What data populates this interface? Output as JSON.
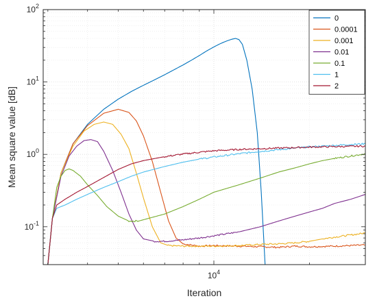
{
  "chart_data": {
    "type": "line",
    "xlabel": "Iteration",
    "ylabel": "Mean square value [dB]",
    "x_scale": "log",
    "y_scale": "log",
    "xlim": [
      2900,
      30000
    ],
    "ylim": [
      0.03,
      100
    ],
    "grid": true,
    "x_tick_labels": [
      {
        "value": 10000,
        "base": "10",
        "exp": "4"
      }
    ],
    "y_tick_labels": [
      {
        "value": 0.1,
        "base": "10",
        "exp": "-1"
      },
      {
        "value": 1,
        "base": "10",
        "exp": "0"
      },
      {
        "value": 10,
        "base": "10",
        "exp": "1"
      },
      {
        "value": 100,
        "base": "10",
        "exp": "2"
      }
    ],
    "legend_position": "top-right",
    "series": [
      {
        "name": "0",
        "color": "#0072BD",
        "points": [
          [
            3000,
            0.03
          ],
          [
            3100,
            0.13
          ],
          [
            3300,
            0.55
          ],
          [
            3600,
            1.4
          ],
          [
            4000,
            2.6
          ],
          [
            4500,
            4.2
          ],
          [
            5000,
            5.8
          ],
          [
            5500,
            7.4
          ],
          [
            6000,
            9.0
          ],
          [
            6500,
            10.7
          ],
          [
            7000,
            12.6
          ],
          [
            7500,
            14.8
          ],
          [
            8000,
            17.2
          ],
          [
            8500,
            20.0
          ],
          [
            9000,
            23.2
          ],
          [
            9500,
            26.9
          ],
          [
            10000,
            30.5
          ],
          [
            10500,
            34.0
          ],
          [
            11000,
            37.0
          ],
          [
            11400,
            39.0
          ],
          [
            11700,
            40.0
          ],
          [
            12000,
            38.5
          ],
          [
            12300,
            33.0
          ],
          [
            12700,
            20.0
          ],
          [
            13200,
            8.0
          ],
          [
            13700,
            2.0
          ],
          [
            14100,
            0.3
          ],
          [
            14500,
            0.03
          ]
        ]
      },
      {
        "name": "0.0001",
        "color": "#D95319",
        "points": [
          [
            3000,
            0.03
          ],
          [
            3100,
            0.13
          ],
          [
            3300,
            0.55
          ],
          [
            3600,
            1.4
          ],
          [
            4000,
            2.5
          ],
          [
            4500,
            3.7
          ],
          [
            5000,
            4.2
          ],
          [
            5400,
            3.8
          ],
          [
            5700,
            2.9
          ],
          [
            6000,
            1.8
          ],
          [
            6400,
            0.8
          ],
          [
            6800,
            0.3
          ],
          [
            7200,
            0.12
          ],
          [
            7600,
            0.07
          ],
          [
            8000,
            0.058
          ],
          [
            9000,
            0.054
          ],
          [
            10000,
            0.055
          ],
          [
            12000,
            0.054
          ],
          [
            14000,
            0.053
          ],
          [
            16000,
            0.052
          ],
          [
            18000,
            0.054
          ],
          [
            20000,
            0.053
          ],
          [
            24000,
            0.054
          ],
          [
            27000,
            0.055
          ],
          [
            30000,
            0.056
          ]
        ]
      },
      {
        "name": "0.001",
        "color": "#EDB120",
        "points": [
          [
            3000,
            0.03
          ],
          [
            3100,
            0.13
          ],
          [
            3300,
            0.55
          ],
          [
            3600,
            1.3
          ],
          [
            3900,
            2.1
          ],
          [
            4200,
            2.6
          ],
          [
            4500,
            2.8
          ],
          [
            4800,
            2.6
          ],
          [
            5100,
            1.9
          ],
          [
            5400,
            1.2
          ],
          [
            5700,
            0.55
          ],
          [
            6000,
            0.25
          ],
          [
            6400,
            0.1
          ],
          [
            6800,
            0.06
          ],
          [
            7200,
            0.055
          ],
          [
            8000,
            0.054
          ],
          [
            10000,
            0.054
          ],
          [
            12000,
            0.055
          ],
          [
            14000,
            0.057
          ],
          [
            16000,
            0.058
          ],
          [
            18000,
            0.06
          ],
          [
            20000,
            0.063
          ],
          [
            22000,
            0.068
          ],
          [
            24000,
            0.072
          ],
          [
            27000,
            0.077
          ],
          [
            30000,
            0.082
          ]
        ]
      },
      {
        "name": "0.01",
        "color": "#7E2F8E",
        "points": [
          [
            3000,
            0.03
          ],
          [
            3100,
            0.13
          ],
          [
            3300,
            0.5
          ],
          [
            3500,
            0.95
          ],
          [
            3700,
            1.3
          ],
          [
            3900,
            1.55
          ],
          [
            4100,
            1.6
          ],
          [
            4300,
            1.5
          ],
          [
            4500,
            1.1
          ],
          [
            4800,
            0.6
          ],
          [
            5100,
            0.3
          ],
          [
            5400,
            0.15
          ],
          [
            5700,
            0.09
          ],
          [
            6000,
            0.068
          ],
          [
            6500,
            0.063
          ],
          [
            7000,
            0.063
          ],
          [
            8000,
            0.066
          ],
          [
            9000,
            0.07
          ],
          [
            10000,
            0.075
          ],
          [
            12000,
            0.085
          ],
          [
            14000,
            0.1
          ],
          [
            16000,
            0.12
          ],
          [
            18000,
            0.14
          ],
          [
            20000,
            0.16
          ],
          [
            22000,
            0.18
          ],
          [
            24000,
            0.21
          ],
          [
            27000,
            0.24
          ],
          [
            30000,
            0.28
          ]
        ]
      },
      {
        "name": "0.1",
        "color": "#77AC30",
        "points": [
          [
            3000,
            0.03
          ],
          [
            3100,
            0.13
          ],
          [
            3200,
            0.35
          ],
          [
            3300,
            0.5
          ],
          [
            3400,
            0.6
          ],
          [
            3500,
            0.63
          ],
          [
            3600,
            0.6
          ],
          [
            3800,
            0.5
          ],
          [
            4000,
            0.38
          ],
          [
            4300,
            0.27
          ],
          [
            4600,
            0.19
          ],
          [
            5000,
            0.14
          ],
          [
            5400,
            0.12
          ],
          [
            5800,
            0.12
          ],
          [
            6200,
            0.13
          ],
          [
            7000,
            0.15
          ],
          [
            8000,
            0.19
          ],
          [
            9000,
            0.24
          ],
          [
            10000,
            0.3
          ],
          [
            12000,
            0.38
          ],
          [
            14000,
            0.47
          ],
          [
            16000,
            0.57
          ],
          [
            18000,
            0.65
          ],
          [
            20000,
            0.74
          ],
          [
            22000,
            0.82
          ],
          [
            24000,
            0.88
          ],
          [
            27000,
            0.95
          ],
          [
            30000,
            1.02
          ]
        ]
      },
      {
        "name": "1",
        "color": "#4DBEEE",
        "points": [
          [
            3000,
            0.03
          ],
          [
            3100,
            0.13
          ],
          [
            3200,
            0.18
          ],
          [
            3400,
            0.2
          ],
          [
            3700,
            0.24
          ],
          [
            4000,
            0.28
          ],
          [
            4500,
            0.35
          ],
          [
            5000,
            0.42
          ],
          [
            5500,
            0.5
          ],
          [
            6000,
            0.57
          ],
          [
            7000,
            0.68
          ],
          [
            8000,
            0.78
          ],
          [
            9000,
            0.86
          ],
          [
            10000,
            0.92
          ],
          [
            12000,
            1.02
          ],
          [
            14000,
            1.1
          ],
          [
            16000,
            1.16
          ],
          [
            18000,
            1.22
          ],
          [
            20000,
            1.27
          ],
          [
            24000,
            1.33
          ],
          [
            27000,
            1.37
          ],
          [
            30000,
            1.4
          ]
        ]
      },
      {
        "name": "2",
        "color": "#A2142F",
        "points": [
          [
            3000,
            0.03
          ],
          [
            3100,
            0.13
          ],
          [
            3200,
            0.2
          ],
          [
            3400,
            0.24
          ],
          [
            3700,
            0.3
          ],
          [
            4000,
            0.36
          ],
          [
            4500,
            0.48
          ],
          [
            5000,
            0.62
          ],
          [
            5500,
            0.74
          ],
          [
            6000,
            0.82
          ],
          [
            7000,
            0.93
          ],
          [
            8000,
            1.01
          ],
          [
            9000,
            1.07
          ],
          [
            10000,
            1.12
          ],
          [
            12000,
            1.17
          ],
          [
            14000,
            1.2
          ],
          [
            16000,
            1.22
          ],
          [
            18000,
            1.24
          ],
          [
            20000,
            1.26
          ],
          [
            24000,
            1.28
          ],
          [
            27000,
            1.29
          ],
          [
            30000,
            1.3
          ]
        ]
      }
    ]
  }
}
